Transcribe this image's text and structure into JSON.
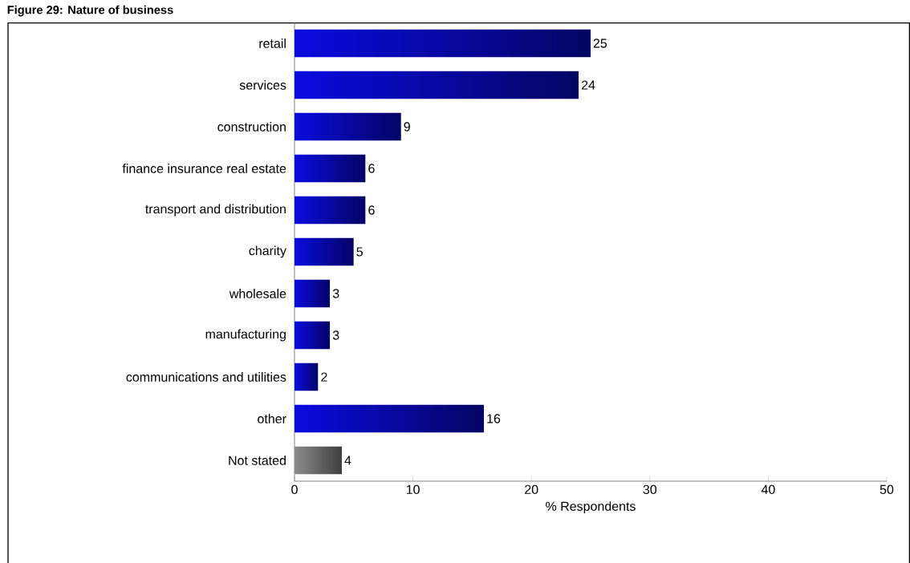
{
  "chart_data": {
    "type": "bar",
    "orientation": "horizontal",
    "title": "Figure 29: Nature of business",
    "xlabel": "% Respondents",
    "categories": [
      "retail",
      "services",
      "construction",
      "finance insurance real estate",
      "transport and distribution",
      "charity",
      "wholesale",
      "manufacturing",
      "communications and utilities",
      "other",
      "Not stated"
    ],
    "values": [
      25,
      24,
      9,
      6,
      6,
      5,
      3,
      3,
      2,
      16,
      4
    ],
    "value_labels": [
      "25",
      "24",
      "9",
      "6",
      "6",
      "5",
      "3",
      "3",
      "2",
      "16",
      "4"
    ],
    "colors": [
      "#0a0ae0",
      "#0a0ae0",
      "#0a0ae0",
      "#0a0ae0",
      "#0a0ae0",
      "#0a0ae0",
      "#0a0ae0",
      "#0a0ae0",
      "#0a0ae0",
      "#0a0ae0",
      "#8c8c8c"
    ],
    "xlim": [
      0,
      50
    ],
    "xticks": [
      0,
      10,
      20,
      30,
      40,
      50
    ],
    "grid": false
  }
}
